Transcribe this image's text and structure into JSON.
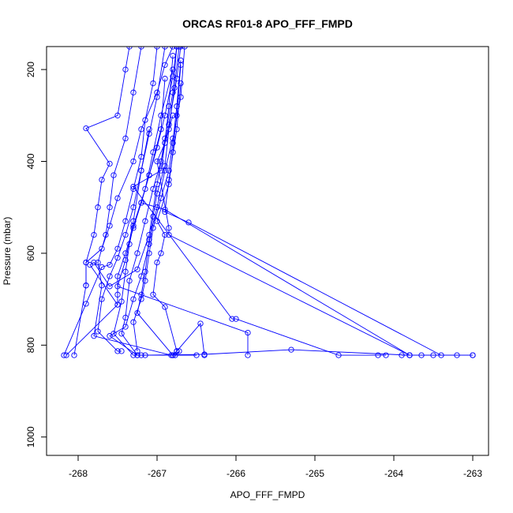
{
  "chart_data": {
    "type": "scatter",
    "title": "ORCAS RF01-8 APO_FFF_FMPD",
    "xlabel": "APO_FFF_FMPD",
    "ylabel": "Pressure (mbar)",
    "xlim": [
      -268.4,
      -262.8
    ],
    "ylim": [
      1040,
      150
    ],
    "y_reversed": true,
    "x_ticks": [
      -268,
      -267,
      -266,
      -265,
      -264,
      -263
    ],
    "x_tick_labels": [
      "-268",
      "-267",
      "-266",
      "-265",
      "-264",
      "-263"
    ],
    "y_ticks": [
      200,
      400,
      600,
      800,
      1000
    ],
    "y_tick_labels": [
      "200",
      "400",
      "600",
      "800",
      "1000"
    ],
    "series_color": "#0000ff",
    "markers": "open-circle",
    "connected": true,
    "grid": false,
    "series": [
      {
        "segments": [
          [
            [
              -266.8,
              150
            ],
            [
              -266.9,
              190
            ],
            [
              -267.0,
              250
            ],
            [
              -267.2,
              330
            ],
            [
              -267.3,
              400
            ],
            [
              -267.5,
              480
            ],
            [
              -267.6,
              540
            ],
            [
              -267.7,
              590
            ],
            [
              -267.9,
              620
            ],
            [
              -267.9,
              670
            ],
            [
              -268.05,
              822
            ]
          ],
          [
            [
              -266.75,
              150
            ],
            [
              -266.8,
              215
            ],
            [
              -266.9,
              300
            ],
            [
              -267.0,
              370
            ],
            [
              -267.1,
              430
            ],
            [
              -267.2,
              490
            ],
            [
              -267.3,
              545
            ],
            [
              -267.4,
              600
            ],
            [
              -267.5,
              650
            ],
            [
              -267.5,
              690
            ],
            [
              -267.5,
              712
            ],
            [
              -268.15,
              822
            ]
          ],
          [
            [
              -267.0,
              150
            ],
            [
              -267.05,
              230
            ],
            [
              -267.15,
              310
            ],
            [
              -267.2,
              390
            ],
            [
              -267.3,
              460
            ],
            [
              -267.4,
              530
            ],
            [
              -267.5,
              590
            ],
            [
              -267.6,
              625
            ],
            [
              -267.7,
              630
            ],
            [
              -267.9,
              710
            ],
            [
              -268.18,
              822
            ]
          ],
          [
            [
              -267.35,
              150
            ],
            [
              -267.4,
              200
            ],
            [
              -267.5,
              300
            ],
            [
              -267.9,
              328
            ],
            [
              -267.6,
              405
            ],
            [
              -267.7,
              440
            ],
            [
              -267.75,
              500
            ],
            [
              -267.8,
              560
            ],
            [
              -267.9,
              620
            ],
            [
              -267.9,
              670
            ]
          ],
          [
            [
              -266.9,
              150
            ],
            [
              -267.0,
              260
            ],
            [
              -267.1,
              340
            ],
            [
              -267.2,
              420
            ],
            [
              -267.3,
              500
            ],
            [
              -267.4,
              560
            ],
            [
              -267.5,
              610
            ],
            [
              -267.6,
              650
            ],
            [
              -267.7,
              700
            ],
            [
              -267.75,
              770
            ],
            [
              -267.5,
              813
            ],
            [
              -267.45,
              813
            ]
          ],
          [
            [
              -266.7,
              150
            ],
            [
              -266.75,
              220
            ],
            [
              -266.85,
              320
            ],
            [
              -266.95,
              400
            ],
            [
              -267.05,
              460
            ],
            [
              -267.15,
              530
            ],
            [
              -267.25,
              600
            ],
            [
              -267.35,
              660
            ],
            [
              -267.4,
              740
            ],
            [
              -267.45,
              775
            ],
            [
              -267.25,
              822
            ],
            [
              -266.8,
              822
            ],
            [
              -266.5,
              822
            ]
          ],
          [
            [
              -266.65,
              150
            ],
            [
              -266.7,
              260
            ],
            [
              -266.8,
              350
            ],
            [
              -266.9,
              420
            ],
            [
              -267.0,
              500
            ],
            [
              -267.1,
              570
            ],
            [
              -267.15,
              640
            ],
            [
              -267.2,
              690
            ],
            [
              -267.25,
              730
            ],
            [
              -266.8,
              822
            ],
            [
              -266.75,
              813
            ],
            [
              -266.45,
              753
            ],
            [
              -266.4,
              822
            ]
          ],
          [
            [
              -266.7,
              190
            ],
            [
              -266.75,
              300
            ],
            [
              -266.8,
              380
            ],
            [
              -266.85,
              450
            ],
            [
              -267.0,
              530
            ],
            [
              -266.9,
              560
            ],
            [
              -266.95,
              600
            ],
            [
              -267.0,
              620
            ],
            [
              -267.05,
              690
            ],
            [
              -266.9,
              717
            ],
            [
              -266.75,
              813
            ]
          ],
          [
            [
              -267.2,
              150
            ],
            [
              -267.3,
              250
            ],
            [
              -267.4,
              350
            ],
            [
              -267.55,
              430
            ],
            [
              -267.6,
              500
            ],
            [
              -267.65,
              560
            ],
            [
              -267.75,
              620
            ],
            [
              -267.7,
              670
            ],
            [
              -267.8,
              780
            ],
            [
              -266.82,
              822
            ],
            [
              -266.77,
              822
            ],
            [
              -266.72,
              813
            ]
          ],
          [
            [
              -266.8,
              170
            ],
            [
              -266.85,
              280
            ],
            [
              -266.9,
              360
            ],
            [
              -266.95,
              420
            ],
            [
              -267.3,
              455
            ],
            [
              -266.05,
              743
            ],
            [
              -266.0,
              743
            ],
            [
              -264.7,
              822
            ],
            [
              -264.2,
              822
            ],
            [
              -264.1,
              822
            ]
          ],
          [
            [
              -266.9,
              220
            ],
            [
              -266.95,
              330
            ],
            [
              -267.1,
              430
            ],
            [
              -267.2,
              490
            ],
            [
              -266.9,
              505
            ],
            [
              -263.8,
              822
            ],
            [
              -263.5,
              822
            ],
            [
              -263.0,
              822
            ],
            [
              -263.2,
              822
            ],
            [
              -263.8,
              822
            ]
          ],
          [
            [
              -266.7,
              230
            ],
            [
              -266.75,
              330
            ],
            [
              -266.85,
              440
            ],
            [
              -266.9,
              510
            ],
            [
              -266.6,
              533
            ],
            [
              -263.4,
              822
            ],
            [
              -263.65,
              822
            ],
            [
              -263.9,
              822
            ],
            [
              -263.0,
              822
            ]
          ],
          [
            [
              -266.8,
              300
            ],
            [
              -266.9,
              360
            ],
            [
              -267.0,
              400
            ],
            [
              -266.85,
              545
            ],
            [
              -266.85,
              560
            ],
            [
              -263.8,
              822
            ],
            [
              -265.3,
              810
            ],
            [
              -266.4,
              820
            ],
            [
              -267.2,
              822
            ]
          ],
          [
            [
              -267.1,
              330
            ],
            [
              -267.2,
              420
            ],
            [
              -267.3,
              530
            ],
            [
              -267.4,
              615
            ],
            [
              -267.5,
              672
            ],
            [
              -265.85,
              773
            ],
            [
              -265.85,
              822
            ]
          ],
          [
            [
              -266.75,
              150
            ],
            [
              -266.8,
              250
            ],
            [
              -266.9,
              350
            ],
            [
              -267.0,
              450
            ],
            [
              -267.1,
              560
            ],
            [
              -267.25,
              635
            ],
            [
              -267.6,
              672
            ],
            [
              -267.8,
              620
            ],
            [
              -267.85,
              625
            ],
            [
              -267.5,
              712
            ]
          ],
          [
            [
              -266.8,
              200
            ],
            [
              -266.95,
              300
            ],
            [
              -267.05,
              380
            ],
            [
              -267.15,
              460
            ],
            [
              -267.3,
              540
            ],
            [
              -267.35,
              580
            ],
            [
              -267.4,
              640
            ],
            [
              -267.45,
              705
            ],
            [
              -267.55,
              775
            ],
            [
              -267.3,
              822
            ],
            [
              -267.15,
              822
            ]
          ],
          [
            [
              -266.7,
              180
            ],
            [
              -266.75,
              280
            ],
            [
              -266.8,
              360
            ],
            [
              -266.85,
              420
            ],
            [
              -266.95,
              480
            ],
            [
              -267.05,
              545
            ],
            [
              -267.1,
              600
            ],
            [
              -267.15,
              660
            ],
            [
              -267.2,
              700
            ],
            [
              -267.3,
              750
            ],
            [
              -267.25,
              813
            ]
          ],
          [
            [
              -266.72,
              150
            ],
            [
              -266.78,
              240
            ],
            [
              -266.85,
              330
            ],
            [
              -266.9,
              410
            ],
            [
              -267.0,
              470
            ],
            [
              -267.05,
              520
            ],
            [
              -267.1,
              580
            ],
            [
              -267.2,
              650
            ],
            [
              -267.3,
              700
            ],
            [
              -267.4,
              760
            ],
            [
              -267.6,
              780
            ],
            [
              -267.25,
              822
            ]
          ]
        ]
      }
    ]
  }
}
